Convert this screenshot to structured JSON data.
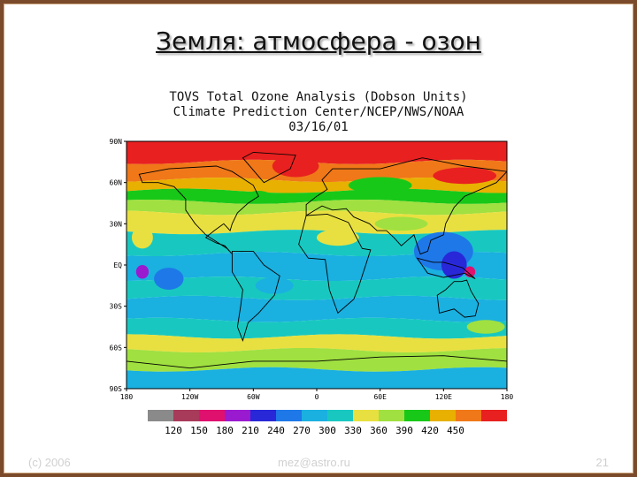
{
  "slide": {
    "title": "Земля: атмосфера - озон",
    "footer_left": "(c) 2006",
    "footer_center": "mez@astro.ru",
    "footer_right": "21"
  },
  "figure": {
    "title_line1": "TOVS Total Ozone Analysis (Dobson Units)",
    "title_line2": "Climate Prediction Center/NCEP/NWS/NOAA",
    "title_line3": "03/16/01"
  },
  "map": {
    "lat_labels": [
      "90N",
      "60N",
      "30N",
      "EQ",
      "30S",
      "60S",
      "90S"
    ],
    "lon_labels": [
      "180",
      "120W",
      "60W",
      "0",
      "60E",
      "120E",
      "180"
    ],
    "legend_values": [
      "120",
      "150",
      "180",
      "210",
      "240",
      "270",
      "300",
      "330",
      "360",
      "390",
      "420",
      "450"
    ],
    "legend_colors": [
      "#8a8a8a",
      "#a83a5a",
      "#e0106e",
      "#9a1ad0",
      "#2828d8",
      "#1e78e8",
      "#1ab0e0",
      "#18c8c0",
      "#e8e040",
      "#a0e040",
      "#18c818",
      "#e8b000",
      "#f07818",
      "#e82020"
    ],
    "ozone_colors": {
      "very_high": "#e82020",
      "high": "#f07818",
      "elevated": "#e8b000",
      "green": "#18c818",
      "light_green": "#a0e040",
      "yellow": "#e8e040",
      "teal": "#18c8c0",
      "cyan": "#1ab0e0",
      "blue": "#1e78e8",
      "deep_blue": "#2828d8",
      "purple": "#9a1ad0",
      "magenta": "#e0106e"
    }
  }
}
